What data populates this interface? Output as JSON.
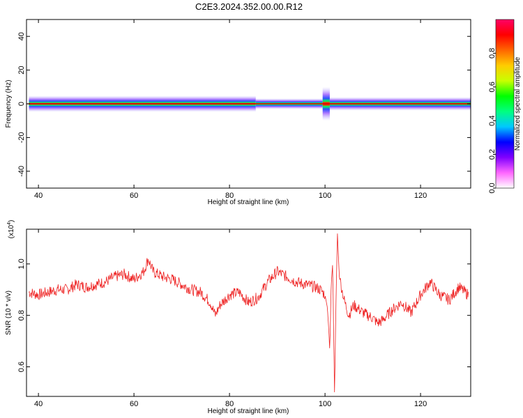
{
  "title": "C2E3.2024.352.00.00.R12",
  "chart_data": [
    {
      "type": "heatmap",
      "panel": "top",
      "xlabel": "Height of straight line (km)",
      "ylabel": "Frequency (Hz)",
      "xlim": [
        37.5,
        130.5
      ],
      "ylim": [
        -50,
        50
      ],
      "xticks": [
        40,
        60,
        80,
        100,
        120
      ],
      "yticks": [
        -40,
        -20,
        0,
        20,
        40
      ],
      "band": {
        "frequency_hz": 0,
        "segments": [
          {
            "x_start": 38.0,
            "x_end": 85.5,
            "halfwidth_hz": 1.2
          },
          {
            "x_start": 85.5,
            "x_end": 99.5,
            "halfwidth_hz": 0.8
          },
          {
            "x_start": 99.5,
            "x_end": 101.0,
            "halfwidth_hz": 2.5
          },
          {
            "x_start": 101.0,
            "x_end": 130.5,
            "halfwidth_hz": 1.0
          }
        ]
      },
      "colorbar": {
        "label": "Normalized spectral amplitude",
        "range": [
          0,
          1
        ],
        "ticks": [
          0.0,
          0.2,
          0.4,
          0.6,
          0.8
        ],
        "colormap": [
          "#ffffff",
          "#ff66ff",
          "#8000ff",
          "#0000ff",
          "#00c8ff",
          "#00ff80",
          "#00ff00",
          "#c8ff00",
          "#ffcc00",
          "#ff6600",
          "#ff0000",
          "#ff0066"
        ]
      }
    },
    {
      "type": "line",
      "panel": "bottom",
      "xlabel": "Height of straight line (km)",
      "ylabel": "SNR (10 * v/v)",
      "multiplier": "(x10",
      "multiplier_exp": "4",
      "multiplier_close": ")",
      "xlim": [
        37.5,
        130.5
      ],
      "ylim": [
        0.485,
        1.135
      ],
      "xticks": [
        40,
        60,
        80,
        100,
        120
      ],
      "yticks": [
        0.6,
        0.8,
        1.0
      ],
      "ytick_labels": [
        "0.6",
        "0.8",
        "1.0"
      ],
      "series": [
        {
          "color": "#ee2222",
          "x": [
            38,
            40,
            42,
            44,
            46,
            48,
            50,
            52,
            54,
            56,
            58,
            60,
            62,
            63,
            64,
            66,
            68,
            70,
            72,
            74,
            76,
            77,
            78,
            80,
            82,
            84,
            86,
            88,
            90,
            92,
            94,
            96,
            98,
            99,
            100,
            100.5,
            100.8,
            101,
            101.3,
            101.6,
            102,
            102.3,
            102.6,
            103,
            104,
            105,
            106,
            108,
            110,
            111,
            112,
            114,
            116,
            118,
            120,
            122,
            124,
            126,
            128,
            130
          ],
          "y": [
            0.89,
            0.88,
            0.89,
            0.9,
            0.9,
            0.92,
            0.91,
            0.92,
            0.93,
            0.95,
            0.96,
            0.94,
            0.97,
            1.02,
            0.97,
            0.95,
            0.94,
            0.92,
            0.9,
            0.89,
            0.85,
            0.8,
            0.84,
            0.88,
            0.89,
            0.85,
            0.87,
            0.93,
            0.97,
            0.95,
            0.93,
            0.92,
            0.91,
            0.9,
            0.88,
            0.83,
            0.74,
            0.66,
            0.92,
            1.0,
            0.49,
            0.85,
            1.12,
            0.95,
            0.86,
            0.8,
            0.84,
            0.81,
            0.79,
            0.77,
            0.78,
            0.82,
            0.85,
            0.81,
            0.88,
            0.93,
            0.88,
            0.86,
            0.91,
            0.88
          ]
        }
      ]
    }
  ]
}
